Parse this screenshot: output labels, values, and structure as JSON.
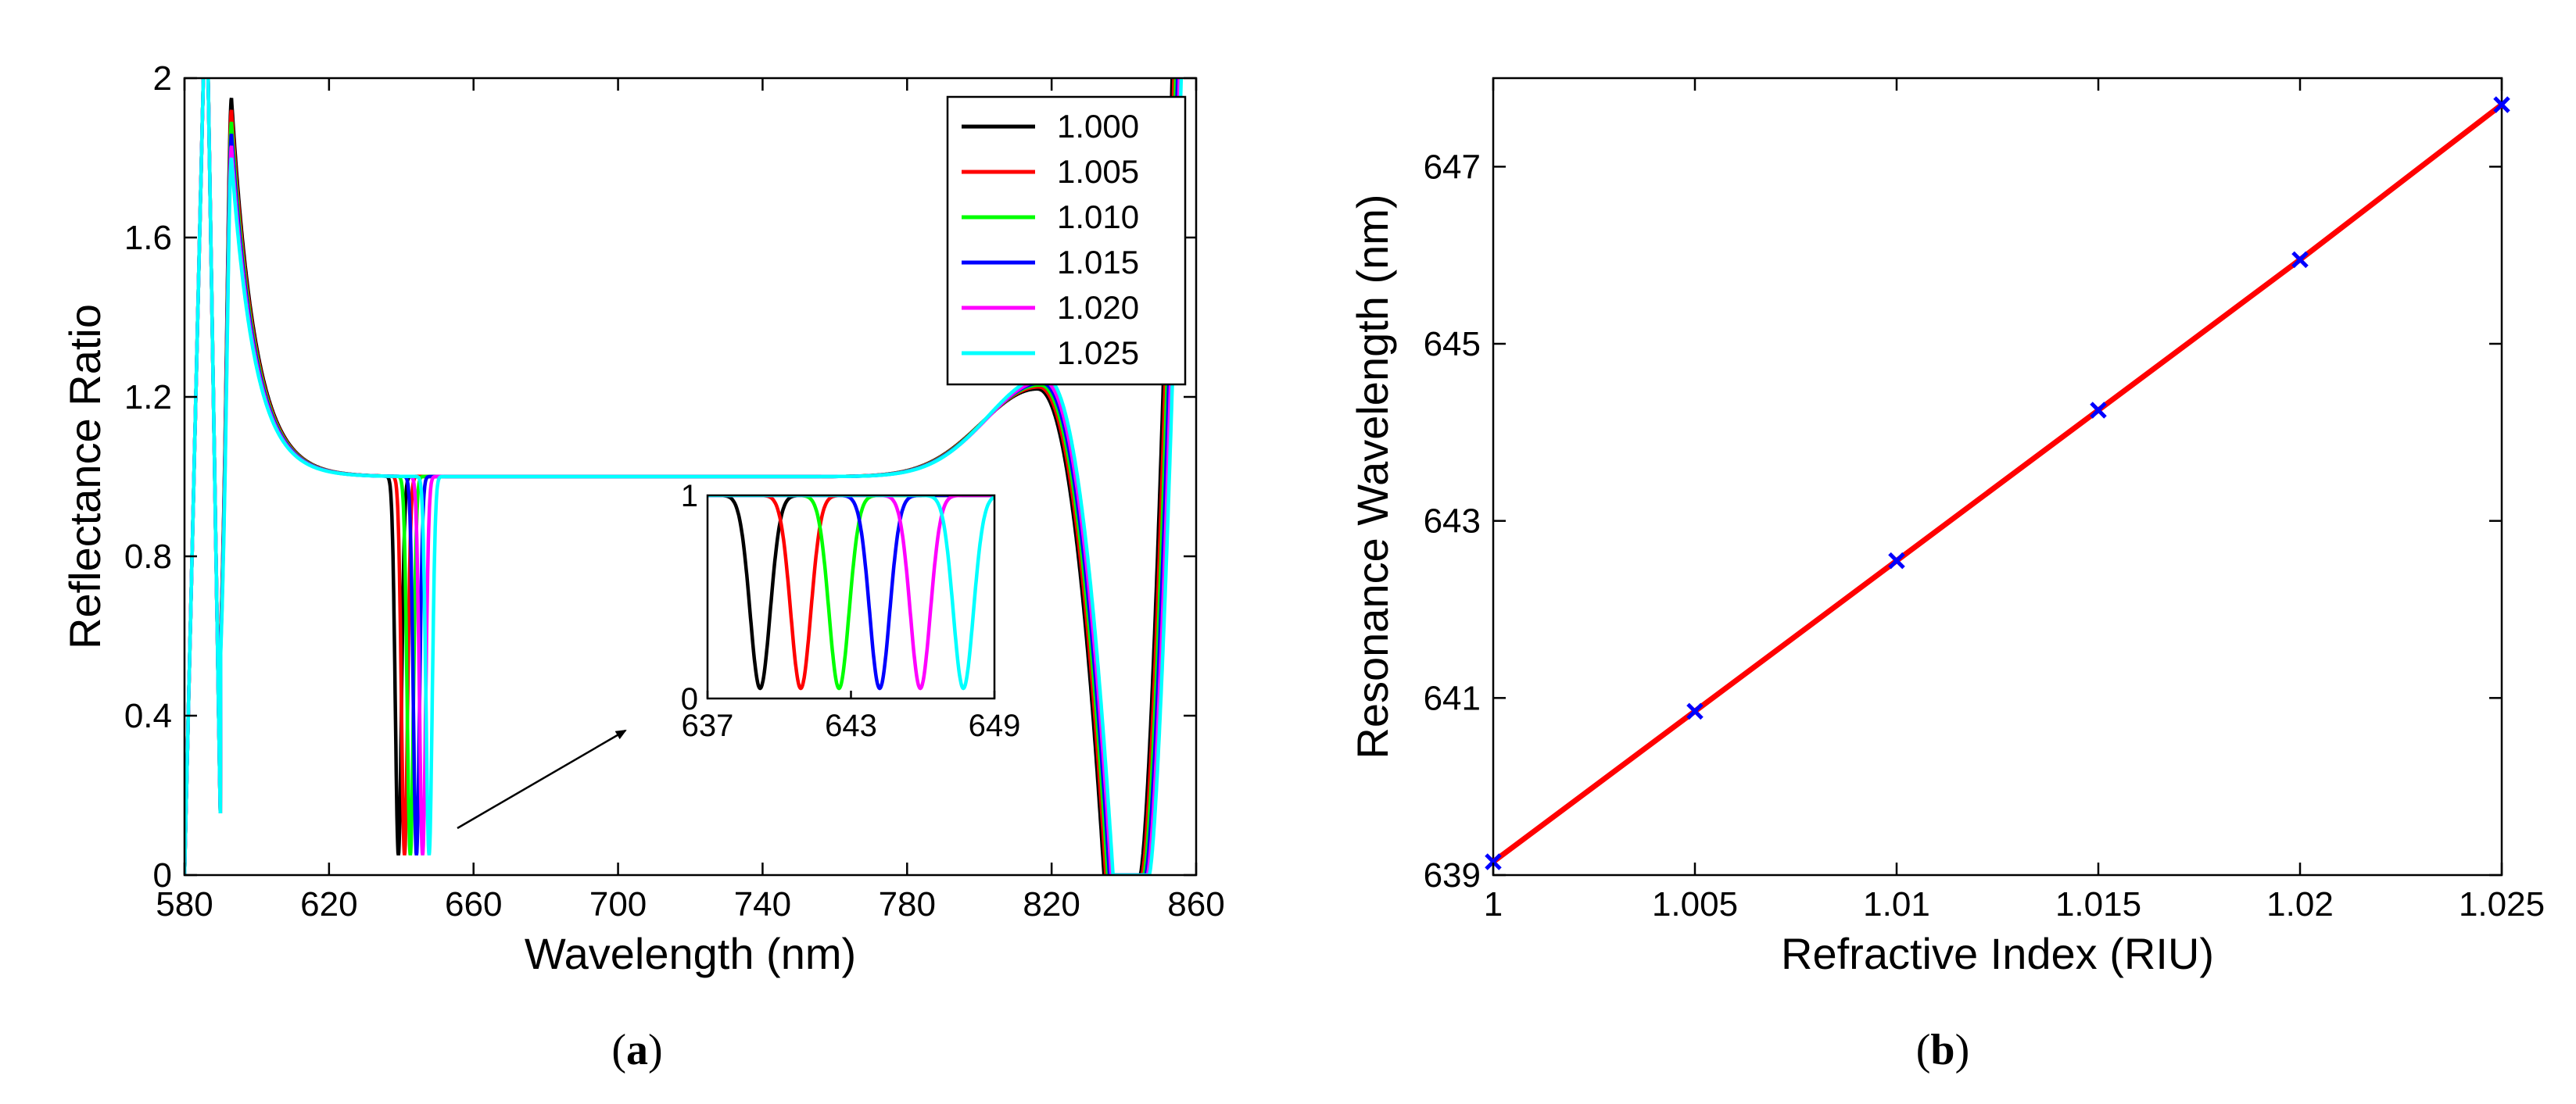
{
  "chart_data": [
    {
      "type": "line",
      "panel_label": "a",
      "xlabel": "Wavelength (nm)",
      "ylabel": "Reflectance Ratio",
      "xlim": [
        580,
        860
      ],
      "ylim": [
        0,
        2
      ],
      "xticks": [
        580,
        620,
        660,
        700,
        740,
        780,
        820,
        860
      ],
      "yticks": [
        0,
        0.4,
        0.8,
        1.2,
        1.6,
        2
      ],
      "ytick_labels": [
        "0",
        "0.4",
        "0.8",
        "1.2",
        "1.6",
        "2"
      ],
      "legend_position": "top-right",
      "series": [
        {
          "name": "1.000",
          "color": "#000000",
          "dip_wavelength": 639.2,
          "dip_min": 0.05,
          "peak_wavelength": 816,
          "peak_value": 1.22,
          "right_dip_wavelength": 840.5,
          "left_peak_value": 1.95
        },
        {
          "name": "1.005",
          "color": "#ff0000",
          "dip_wavelength": 640.9,
          "dip_min": 0.05,
          "peak_wavelength": 816.4,
          "peak_value": 1.225,
          "right_dip_wavelength": 841.0,
          "left_peak_value": 1.92
        },
        {
          "name": "1.010",
          "color": "#00ff00",
          "dip_wavelength": 642.5,
          "dip_min": 0.05,
          "peak_wavelength": 816.8,
          "peak_value": 1.23,
          "right_dip_wavelength": 841.5,
          "left_peak_value": 1.89
        },
        {
          "name": "1.015",
          "color": "#0000ff",
          "dip_wavelength": 644.2,
          "dip_min": 0.05,
          "peak_wavelength": 817.2,
          "peak_value": 1.235,
          "right_dip_wavelength": 842.0,
          "left_peak_value": 1.86
        },
        {
          "name": "1.020",
          "color": "#ff00ff",
          "dip_wavelength": 645.9,
          "dip_min": 0.05,
          "peak_wavelength": 817.6,
          "peak_value": 1.24,
          "right_dip_wavelength": 842.5,
          "left_peak_value": 1.83
        },
        {
          "name": "1.025",
          "color": "#00ffff",
          "dip_wavelength": 647.7,
          "dip_min": 0.05,
          "peak_wavelength": 818,
          "peak_value": 1.25,
          "right_dip_wavelength": 843.0,
          "left_peak_value": 1.8
        }
      ],
      "inset": {
        "xlim": [
          637,
          649
        ],
        "ylim": [
          0,
          1
        ],
        "xticks": [
          637,
          643,
          649
        ],
        "yticks": [
          0,
          1
        ],
        "ytick_labels": [
          "0",
          "1"
        ]
      },
      "annotation": "arrow pointing to inset"
    },
    {
      "type": "line",
      "panel_label": "b",
      "xlabel": "Refractive Index (RIU)",
      "ylabel": "Resonance Wavelength (nm)",
      "xlim": [
        1,
        1.025
      ],
      "ylim": [
        639,
        648
      ],
      "xticks": [
        1,
        1.005,
        1.01,
        1.015,
        1.02,
        1.025
      ],
      "xtick_labels": [
        "1",
        "1.005",
        "1.01",
        "1.015",
        "1.02",
        "1.025"
      ],
      "yticks": [
        639,
        641,
        643,
        645,
        647
      ],
      "line_color": "#ff0000",
      "marker_color": "#0000ff",
      "marker": "x",
      "x": [
        1,
        1.005,
        1.01,
        1.015,
        1.02,
        1.025
      ],
      "y": [
        639.15,
        640.85,
        642.55,
        644.25,
        645.95,
        647.7
      ]
    }
  ],
  "captions": {
    "a": {
      "open": "(",
      "letter": "a",
      "close": ")"
    },
    "b": {
      "open": "(",
      "letter": "b",
      "close": ")"
    }
  }
}
